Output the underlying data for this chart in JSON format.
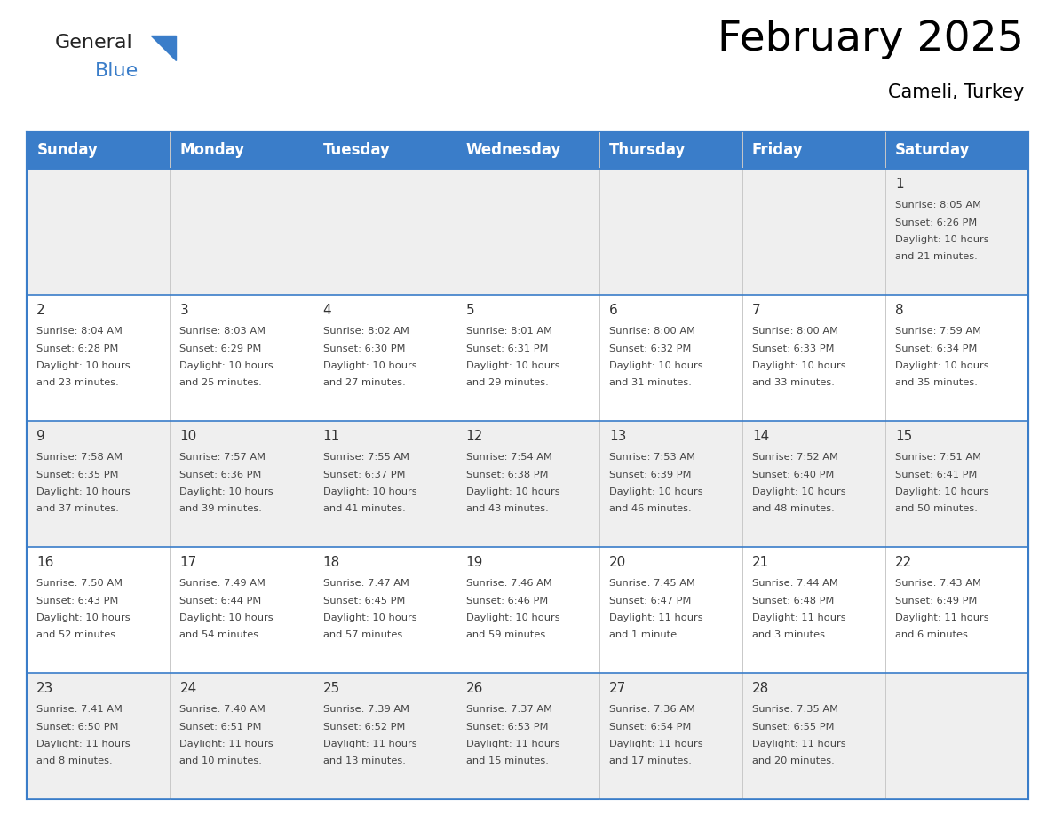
{
  "title": "February 2025",
  "subtitle": "Cameli, Turkey",
  "days_of_week": [
    "Sunday",
    "Monday",
    "Tuesday",
    "Wednesday",
    "Thursday",
    "Friday",
    "Saturday"
  ],
  "header_bg": "#3A7DC9",
  "header_text_color": "#FFFFFF",
  "cell_bg_gray": "#EFEFEF",
  "cell_bg_white": "#FFFFFF",
  "row_colors": [
    "gray",
    "white",
    "gray",
    "white",
    "gray"
  ],
  "border_color": "#3A7DC9",
  "separator_color": "#3A7DC9",
  "text_color": "#444444",
  "day_number_color": "#333333",
  "calendar_data": [
    [
      null,
      null,
      null,
      null,
      null,
      null,
      {
        "day": 1,
        "sunrise": "8:05 AM",
        "sunset": "6:26 PM",
        "daylight": "10 hours and 21 minutes."
      }
    ],
    [
      {
        "day": 2,
        "sunrise": "8:04 AM",
        "sunset": "6:28 PM",
        "daylight": "10 hours and 23 minutes."
      },
      {
        "day": 3,
        "sunrise": "8:03 AM",
        "sunset": "6:29 PM",
        "daylight": "10 hours and 25 minutes."
      },
      {
        "day": 4,
        "sunrise": "8:02 AM",
        "sunset": "6:30 PM",
        "daylight": "10 hours and 27 minutes."
      },
      {
        "day": 5,
        "sunrise": "8:01 AM",
        "sunset": "6:31 PM",
        "daylight": "10 hours and 29 minutes."
      },
      {
        "day": 6,
        "sunrise": "8:00 AM",
        "sunset": "6:32 PM",
        "daylight": "10 hours and 31 minutes."
      },
      {
        "day": 7,
        "sunrise": "8:00 AM",
        "sunset": "6:33 PM",
        "daylight": "10 hours and 33 minutes."
      },
      {
        "day": 8,
        "sunrise": "7:59 AM",
        "sunset": "6:34 PM",
        "daylight": "10 hours and 35 minutes."
      }
    ],
    [
      {
        "day": 9,
        "sunrise": "7:58 AM",
        "sunset": "6:35 PM",
        "daylight": "10 hours and 37 minutes."
      },
      {
        "day": 10,
        "sunrise": "7:57 AM",
        "sunset": "6:36 PM",
        "daylight": "10 hours and 39 minutes."
      },
      {
        "day": 11,
        "sunrise": "7:55 AM",
        "sunset": "6:37 PM",
        "daylight": "10 hours and 41 minutes."
      },
      {
        "day": 12,
        "sunrise": "7:54 AM",
        "sunset": "6:38 PM",
        "daylight": "10 hours and 43 minutes."
      },
      {
        "day": 13,
        "sunrise": "7:53 AM",
        "sunset": "6:39 PM",
        "daylight": "10 hours and 46 minutes."
      },
      {
        "day": 14,
        "sunrise": "7:52 AM",
        "sunset": "6:40 PM",
        "daylight": "10 hours and 48 minutes."
      },
      {
        "day": 15,
        "sunrise": "7:51 AM",
        "sunset": "6:41 PM",
        "daylight": "10 hours and 50 minutes."
      }
    ],
    [
      {
        "day": 16,
        "sunrise": "7:50 AM",
        "sunset": "6:43 PM",
        "daylight": "10 hours and 52 minutes."
      },
      {
        "day": 17,
        "sunrise": "7:49 AM",
        "sunset": "6:44 PM",
        "daylight": "10 hours and 54 minutes."
      },
      {
        "day": 18,
        "sunrise": "7:47 AM",
        "sunset": "6:45 PM",
        "daylight": "10 hours and 57 minutes."
      },
      {
        "day": 19,
        "sunrise": "7:46 AM",
        "sunset": "6:46 PM",
        "daylight": "10 hours and 59 minutes."
      },
      {
        "day": 20,
        "sunrise": "7:45 AM",
        "sunset": "6:47 PM",
        "daylight": "11 hours and 1 minute."
      },
      {
        "day": 21,
        "sunrise": "7:44 AM",
        "sunset": "6:48 PM",
        "daylight": "11 hours and 3 minutes."
      },
      {
        "day": 22,
        "sunrise": "7:43 AM",
        "sunset": "6:49 PM",
        "daylight": "11 hours and 6 minutes."
      }
    ],
    [
      {
        "day": 23,
        "sunrise": "7:41 AM",
        "sunset": "6:50 PM",
        "daylight": "11 hours and 8 minutes."
      },
      {
        "day": 24,
        "sunrise": "7:40 AM",
        "sunset": "6:51 PM",
        "daylight": "11 hours and 10 minutes."
      },
      {
        "day": 25,
        "sunrise": "7:39 AM",
        "sunset": "6:52 PM",
        "daylight": "11 hours and 13 minutes."
      },
      {
        "day": 26,
        "sunrise": "7:37 AM",
        "sunset": "6:53 PM",
        "daylight": "11 hours and 15 minutes."
      },
      {
        "day": 27,
        "sunrise": "7:36 AM",
        "sunset": "6:54 PM",
        "daylight": "11 hours and 17 minutes."
      },
      {
        "day": 28,
        "sunrise": "7:35 AM",
        "sunset": "6:55 PM",
        "daylight": "11 hours and 20 minutes."
      },
      null
    ]
  ],
  "logo_color1": "#222222",
  "logo_color2": "#3A7DC9",
  "title_fontsize": 34,
  "subtitle_fontsize": 15,
  "header_fontsize": 12,
  "day_num_fontsize": 11,
  "cell_text_fontsize": 8.2
}
